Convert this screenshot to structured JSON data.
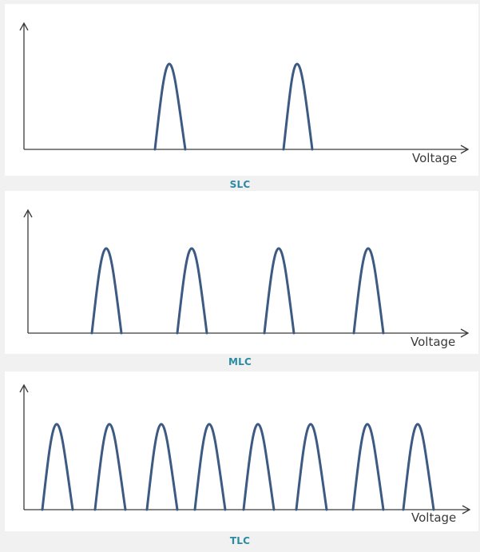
{
  "diagrams": [
    {
      "id": "slc",
      "caption": "SLC",
      "xlabel": "Voltage",
      "peak_count": 2
    },
    {
      "id": "mlc",
      "caption": "MLC",
      "xlabel": "Voltage",
      "peak_count": 4
    },
    {
      "id": "tlc",
      "caption": "TLC",
      "xlabel": "Voltage",
      "peak_count": 8
    }
  ],
  "colors": {
    "peak": "#3c5a82",
    "caption": "#2a8ba3",
    "axis": "#3a3a3a",
    "panel_background": "#ffffff",
    "page_background": "#f1f1f1"
  }
}
